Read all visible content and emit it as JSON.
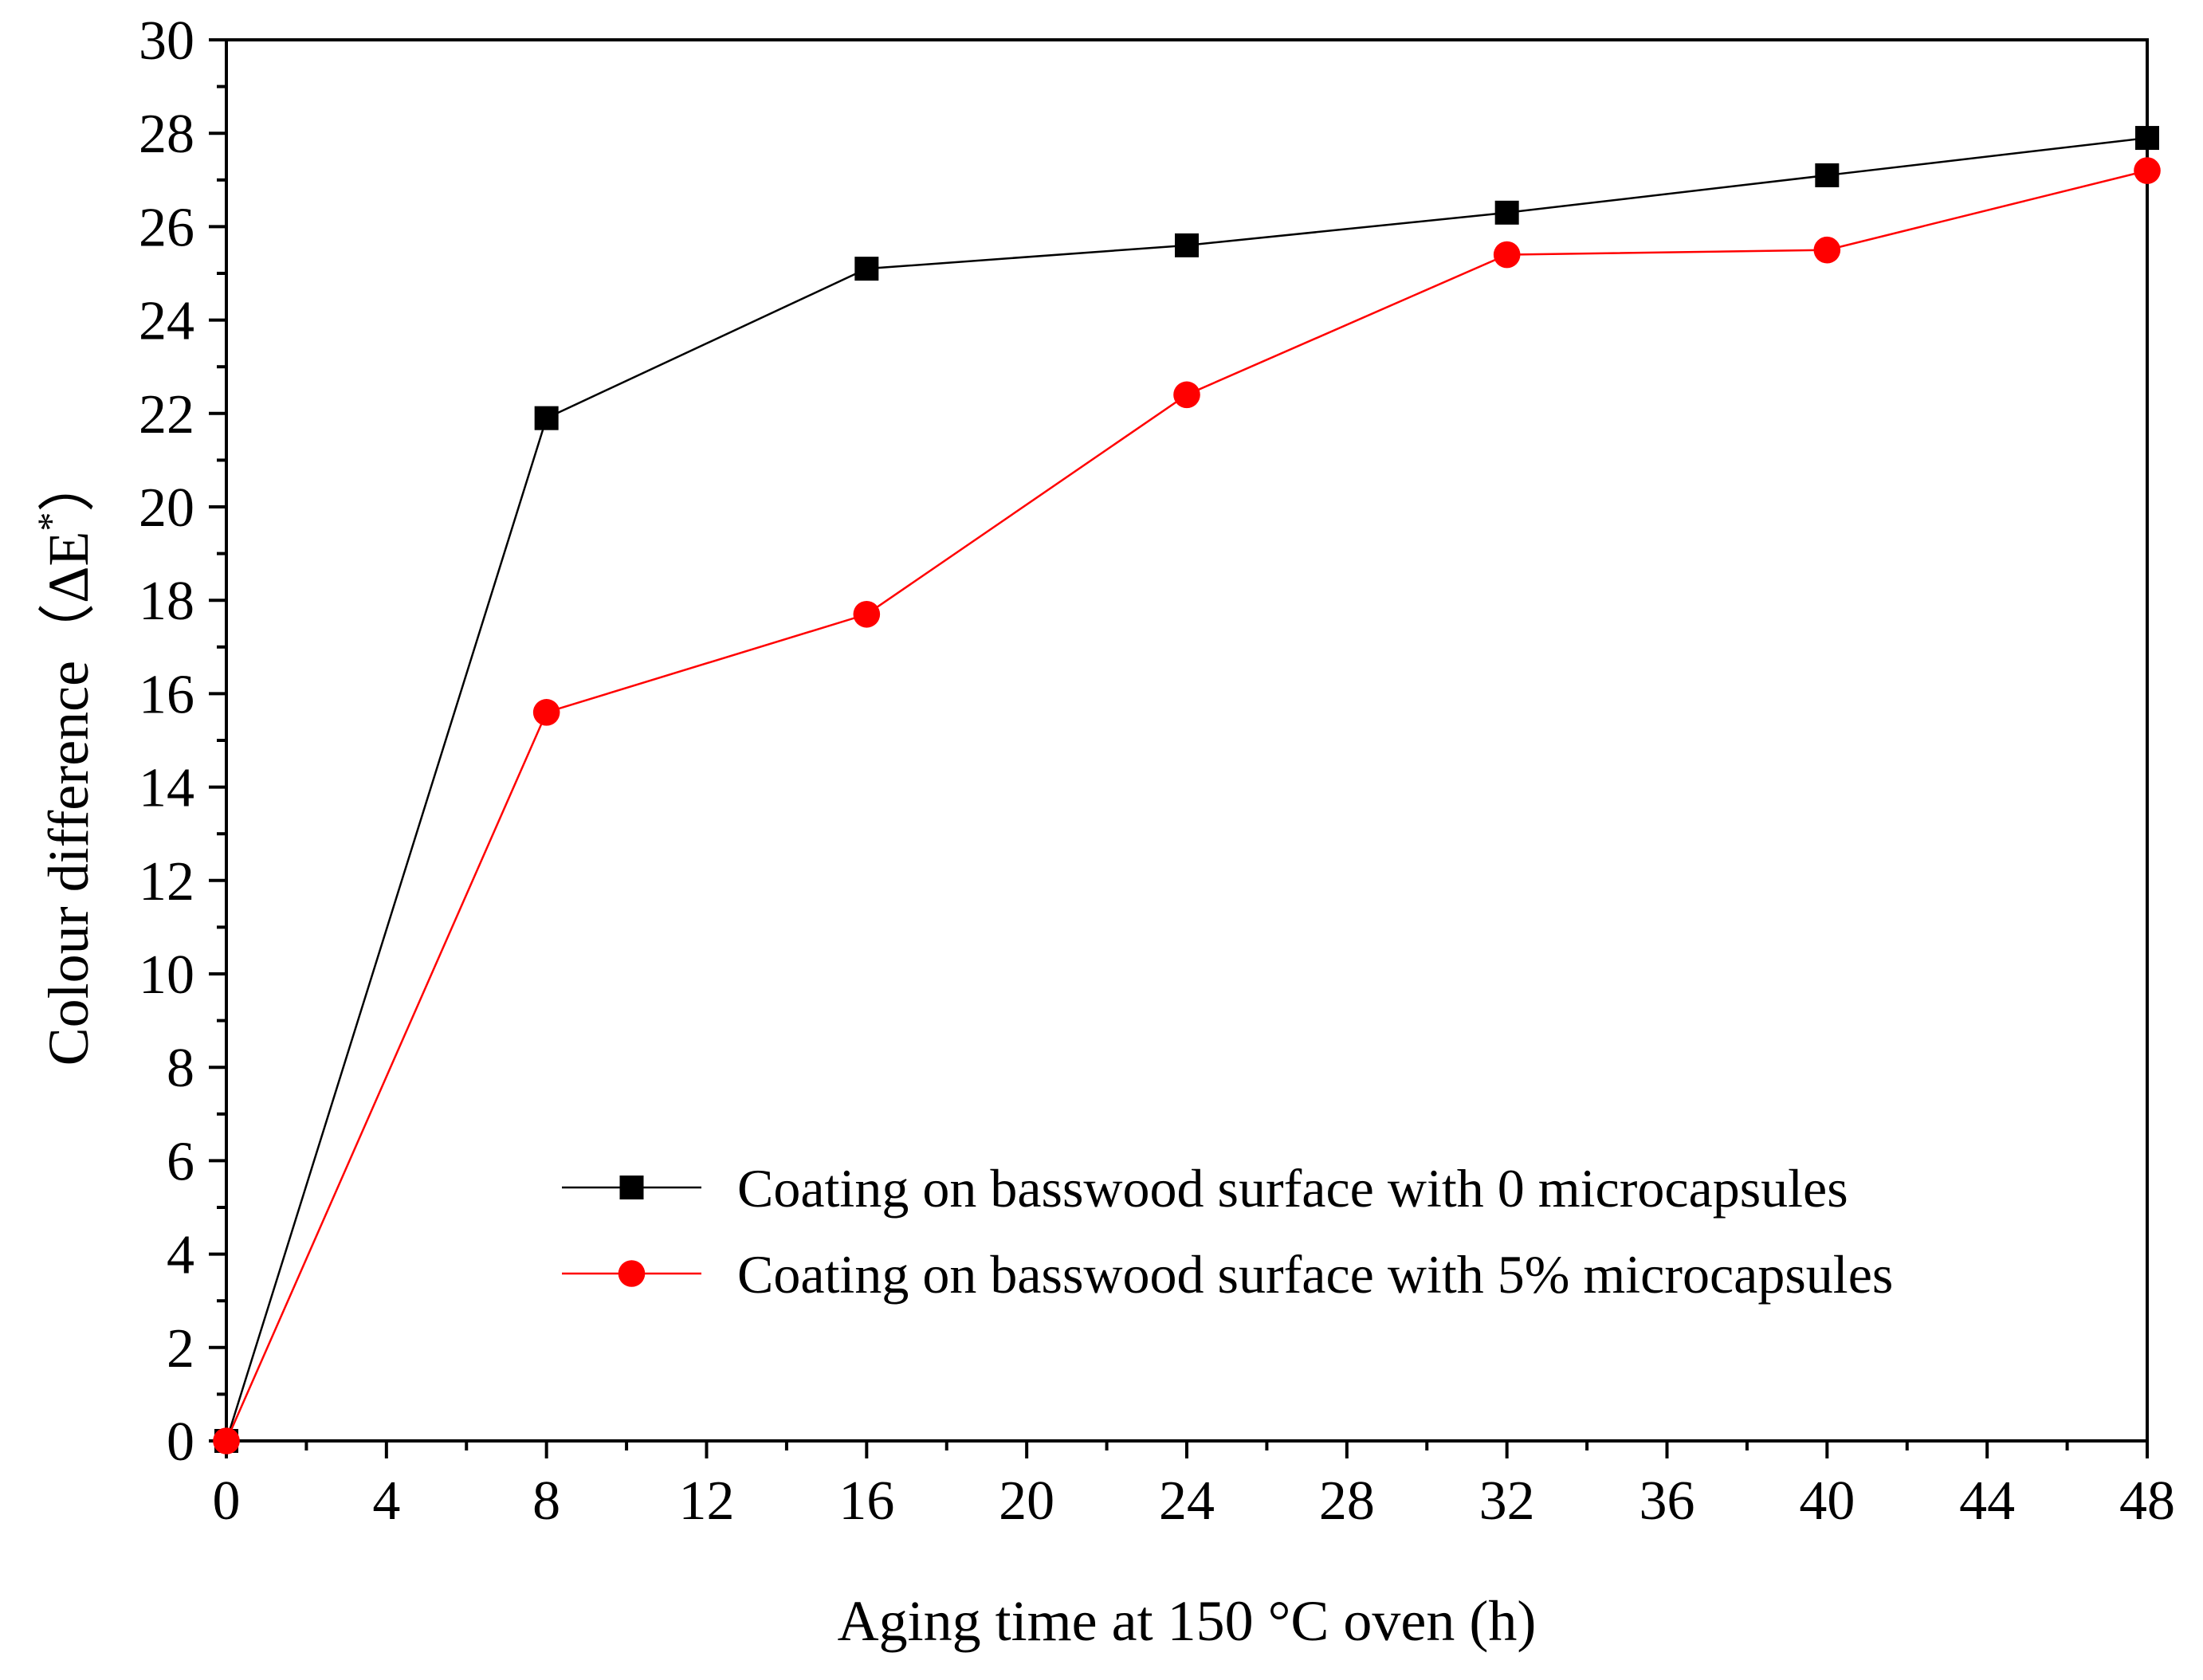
{
  "chart_data": {
    "type": "line",
    "title": "",
    "xlabel": "Aging time at 150 °C oven (h)",
    "ylabel": "Colour difference（ΔE*）",
    "ylabel_parts": {
      "prefix": "Colour difference（ΔE",
      "superscript": "*",
      "suffix": "）"
    },
    "xlim": [
      0,
      48
    ],
    "ylim": [
      0,
      30
    ],
    "xticks": [
      "0",
      "4",
      "8",
      "12",
      "16",
      "20",
      "24",
      "28",
      "32",
      "36",
      "40",
      "44",
      "48"
    ],
    "yticks": [
      "0",
      "2",
      "4",
      "6",
      "8",
      "10",
      "12",
      "14",
      "16",
      "18",
      "20",
      "22",
      "24",
      "26",
      "28",
      "30"
    ],
    "x": [
      0,
      8,
      16,
      24,
      32,
      40,
      48
    ],
    "grid": false,
    "legend_position": "bottom-right",
    "series": [
      {
        "name": "Coating on basswood surface with 0 microcapsules",
        "marker": "square",
        "color": "#000000",
        "values": [
          0,
          21.9,
          25.1,
          25.6,
          26.3,
          27.1,
          27.9
        ]
      },
      {
        "name": "Coating on basswood surface with 5% microcapsules",
        "marker": "circle",
        "color": "#ff0000",
        "values": [
          0,
          15.6,
          17.7,
          22.4,
          25.4,
          25.5,
          27.2
        ]
      }
    ]
  }
}
